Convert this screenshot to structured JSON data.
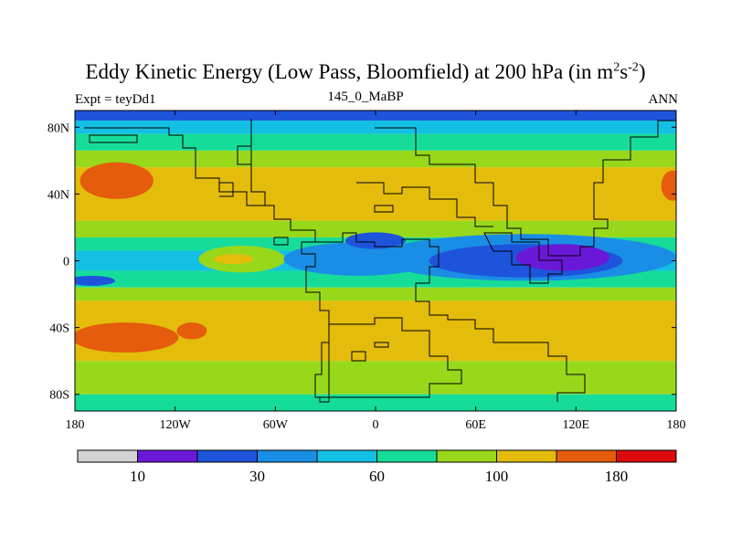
{
  "title": {
    "main": "Eddy Kinetic Energy (Low Pass, Bloomfield) at 200 hPa (in m",
    "sup1": "2",
    "mid": "s",
    "sup2": "-2",
    "close": ")"
  },
  "subtitle_left": "Expt = teyDd1",
  "subtitle_center": "145_0_MaBP",
  "subtitle_right": "ANN",
  "chart_data": {
    "type": "heatmap",
    "projection": "cylindrical equidistant",
    "x_ticks": [
      "180",
      "120W",
      "60W",
      "0",
      "60E",
      "120E",
      "180"
    ],
    "x_tick_values": [
      -180,
      -120,
      -60,
      0,
      60,
      120,
      180
    ],
    "y_ticks": [
      "80N",
      "40N",
      "0",
      "40S",
      "80S"
    ],
    "y_tick_values": [
      80,
      40,
      0,
      -40,
      -80
    ],
    "xlim": [
      -180,
      180
    ],
    "ylim": [
      -90,
      90
    ],
    "colorbar": {
      "colors": [
        "#d3d3d3",
        "#6a18d8",
        "#1e54dc",
        "#1a8ee4",
        "#14bfe4",
        "#16dc9a",
        "#98d81a",
        "#e4bc0c",
        "#e45c0c",
        "#dc0a0a"
      ],
      "labels": [
        "10",
        "30",
        "60",
        "100",
        "180"
      ],
      "label_after_bin": [
        0,
        2,
        4,
        6,
        8
      ]
    },
    "bands": [
      {
        "lat": [
          84,
          90
        ],
        "level": 2
      },
      {
        "lat": [
          76,
          84
        ],
        "level": 4
      },
      {
        "lat": [
          66,
          76
        ],
        "level": 5
      },
      {
        "lat": [
          56,
          66
        ],
        "level": 6
      },
      {
        "lat": [
          24,
          56
        ],
        "level": 7
      },
      {
        "lat": [
          14,
          24
        ],
        "level": 6
      },
      {
        "lat": [
          6,
          14
        ],
        "level": 5
      },
      {
        "lat": [
          -6,
          6
        ],
        "level": 4
      },
      {
        "lat": [
          -16,
          -6
        ],
        "level": 5
      },
      {
        "lat": [
          -24,
          -16
        ],
        "level": 6
      },
      {
        "lat": [
          -60,
          -24
        ],
        "level": 7
      },
      {
        "lat": [
          -80,
          -60
        ],
        "level": 6
      },
      {
        "lat": [
          -90,
          -80
        ],
        "level": 5
      }
    ],
    "blobs": [
      {
        "lon": -155,
        "lat": 48,
        "rlon": 22,
        "rlat": 11,
        "level": 8
      },
      {
        "lon": 178,
        "lat": 45,
        "rlon": 7,
        "rlat": 9,
        "level": 8
      },
      {
        "lon": -150,
        "lat": -46,
        "rlon": 32,
        "rlat": 9,
        "level": 8
      },
      {
        "lon": -110,
        "lat": -42,
        "rlon": 9,
        "rlat": 5,
        "level": 8
      },
      {
        "lon": -80,
        "lat": 1,
        "rlon": 26,
        "rlat": 8,
        "level": 6
      },
      {
        "lon": -85,
        "lat": 1,
        "rlon": 12,
        "rlat": 3,
        "level": 7
      },
      {
        "lon": -10,
        "lat": 1,
        "rlon": 45,
        "rlat": 10,
        "level": 3
      },
      {
        "lon": 0,
        "lat": 12,
        "rlon": 18,
        "rlat": 5,
        "level": 2
      },
      {
        "lon": 90,
        "lat": 2,
        "rlon": 90,
        "rlat": 14,
        "level": 3
      },
      {
        "lon": 90,
        "lat": 0,
        "rlon": 58,
        "rlat": 10,
        "level": 2
      },
      {
        "lon": 112,
        "lat": 2,
        "rlon": 28,
        "rlat": 8,
        "level": 1
      },
      {
        "lon": -170,
        "lat": -12,
        "rlon": 14,
        "rlat": 3,
        "level": 2
      }
    ]
  }
}
